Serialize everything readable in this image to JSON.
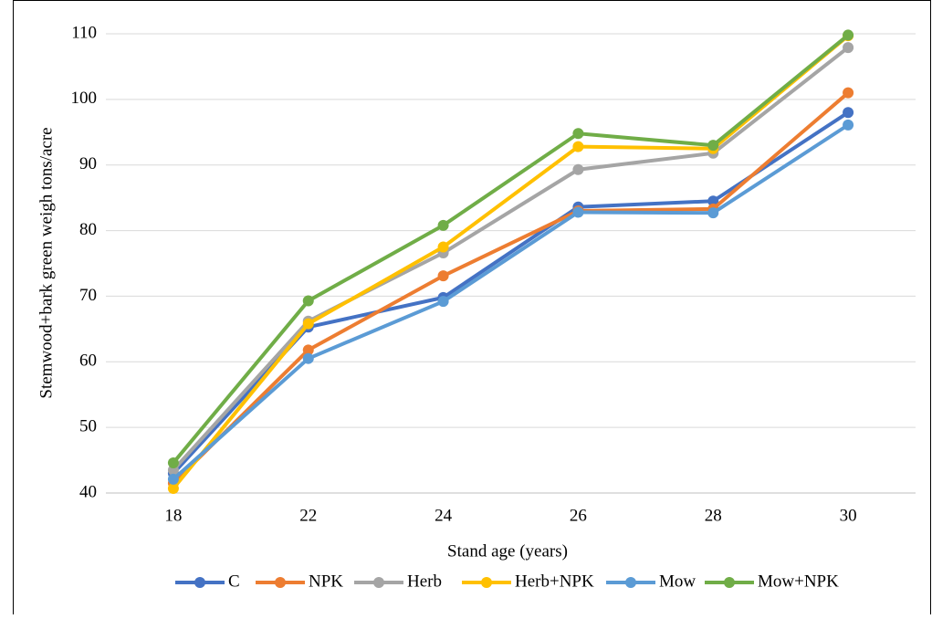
{
  "chart_data": {
    "type": "line",
    "x_label": "Stand age (years)",
    "y_label": "Stemwood+bark green weigh tons/acre",
    "categories": [
      "18",
      "22",
      "24",
      "26",
      "28",
      "30"
    ],
    "series": [
      {
        "name": "C",
        "color": "#4472c4",
        "values": [
          43,
          65.3,
          69.8,
          83.6,
          84.5,
          98
        ]
      },
      {
        "name": "NPK",
        "color": "#ed7d31",
        "values": [
          41.5,
          61.8,
          73.1,
          83,
          83.3,
          101
        ]
      },
      {
        "name": "Herb",
        "color": "#a5a5a5",
        "values": [
          43.5,
          66.2,
          76.6,
          89.3,
          91.8,
          107.9
        ]
      },
      {
        "name": "Herb+NPK",
        "color": "#ffc000",
        "values": [
          40.7,
          65.8,
          77.5,
          92.8,
          92.5,
          109.7
        ]
      },
      {
        "name": "Mow",
        "color": "#5b9bd5",
        "values": [
          42.1,
          60.5,
          69.2,
          82.8,
          82.7,
          96.1
        ]
      },
      {
        "name": "Mow+NPK",
        "color": "#70ad47",
        "values": [
          44.6,
          69.3,
          80.8,
          94.8,
          93,
          109.8
        ]
      }
    ],
    "ylim": [
      40,
      110
    ],
    "yticks": [
      40,
      50,
      60,
      70,
      80,
      90,
      100,
      110
    ],
    "grid": true,
    "legend": "bottom"
  }
}
